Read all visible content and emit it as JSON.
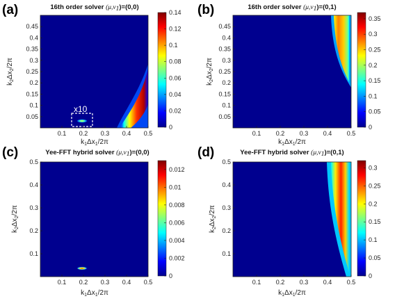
{
  "chart_data": [
    {
      "type": "heatmap",
      "panel_label": "(a)",
      "title": {
        "prefix": "16th order solver ",
        "params": "(μ,ν",
        "sub": "1",
        "suffix": ")=(0,0)"
      },
      "xlabel": {
        "pre": "k",
        "sub": "1",
        "post": "Δx",
        "sub2": "1",
        "end": "/2π"
      },
      "ylabel": {
        "pre": "k",
        "sub": "2",
        "post": "Δx",
        "sub2": "2",
        "end": "/2π"
      },
      "xlim": [
        0,
        0.5
      ],
      "ylim": [
        0,
        0.5
      ],
      "xticks": [
        "0.1",
        "0.2",
        "0.3",
        "0.4",
        "0.5"
      ],
      "yticks": [
        "0.05",
        "0.1",
        "0.15",
        "0.2",
        "0.25",
        "0.3",
        "0.35",
        "0.4",
        "0.45"
      ],
      "colorbar": {
        "range": [
          0,
          0.14
        ],
        "ticks": [
          "0",
          "0.02",
          "0.04",
          "0.06",
          "0.08",
          "0.1",
          "0.12",
          "0.14"
        ]
      },
      "annotation": "x10",
      "regions": [
        {
          "description": "crescent band near x=0.4–0.5, y=0.02–0.25",
          "peak": 0.14
        },
        {
          "description": "small spot near x≈0.22, y≈0.03",
          "peak": 0.06
        }
      ]
    },
    {
      "type": "heatmap",
      "panel_label": "(b)",
      "title": {
        "prefix": "16th order solver ",
        "params": "(μ,ν",
        "sub": "1",
        "suffix": ")=(0,1)"
      },
      "xlabel": {
        "pre": "k",
        "sub": "1",
        "post": "Δx",
        "sub2": "1",
        "end": "/2π"
      },
      "ylabel": {
        "pre": "k",
        "sub": "2",
        "post": "Δx",
        "sub2": "2",
        "end": "/2π"
      },
      "xlim": [
        0,
        0.5
      ],
      "ylim": [
        0,
        0.5
      ],
      "xticks": [
        "0.1",
        "0.2",
        "0.3",
        "0.4",
        "0.5"
      ],
      "yticks": [
        "0.05",
        "0.1",
        "0.15",
        "0.2",
        "0.25",
        "0.3",
        "0.35",
        "0.4",
        "0.45"
      ],
      "colorbar": {
        "range": [
          0,
          0.37
        ],
        "ticks": [
          "0",
          "0.05",
          "0.1",
          "0.15",
          "0.2",
          "0.25",
          "0.3",
          "0.35"
        ]
      },
      "regions": [
        {
          "description": "band near x=0.44–0.5, y=0.18–0.5",
          "peak": 0.37
        }
      ]
    },
    {
      "type": "heatmap",
      "panel_label": "(c)",
      "title": {
        "prefix": "Yee-FFT hybrid solver ",
        "params": "(μ,ν",
        "sub": "1",
        "suffix": ")=(0,0)"
      },
      "xlabel": {
        "pre": "k",
        "sub": "1",
        "post": "Δx",
        "sub2": "1",
        "end": "/2π"
      },
      "ylabel": {
        "pre": "k",
        "sub": "2",
        "post": "Δx",
        "sub2": "2",
        "end": "/2π"
      },
      "xlim": [
        0,
        0.5
      ],
      "ylim": [
        0,
        0.5
      ],
      "xticks": [
        "0.1",
        "0.2",
        "0.3",
        "0.4",
        "0.5"
      ],
      "yticks": [
        "0.1",
        "0.2",
        "0.3",
        "0.4",
        "0.5"
      ],
      "colorbar": {
        "range": [
          0,
          0.013
        ],
        "ticks": [
          "0",
          "0.002",
          "0.004",
          "0.006",
          "0.008",
          "0.01",
          "0.012"
        ]
      },
      "regions": [
        {
          "description": "small spot near x≈0.22, y≈0.03",
          "peak": 0.013
        }
      ]
    },
    {
      "type": "heatmap",
      "panel_label": "(d)",
      "title": {
        "prefix": "Yee-FFT hybrid solver ",
        "params": "(μ,ν",
        "sub": "1",
        "suffix": ")=(0,1)"
      },
      "xlabel": {
        "pre": "k",
        "sub": "1",
        "post": "Δx",
        "sub2": "1",
        "end": "/2π"
      },
      "ylabel": {
        "pre": "k",
        "sub": "2",
        "post": "Δx",
        "sub2": "2",
        "end": "/2π"
      },
      "xlim": [
        0,
        0.5
      ],
      "ylim": [
        0,
        0.5
      ],
      "xticks": [
        "0.1",
        "0.2",
        "0.3",
        "0.4",
        "0.5"
      ],
      "yticks": [
        "0.1",
        "0.2",
        "0.3",
        "0.4",
        "0.5"
      ],
      "colorbar": {
        "range": [
          0,
          0.32
        ],
        "ticks": [
          "0",
          "0.05",
          "0.1",
          "0.15",
          "0.2",
          "0.25",
          "0.3"
        ]
      },
      "regions": [
        {
          "description": "band near x=0.43–0.5, y=0.01–0.5",
          "peak": 0.32
        }
      ]
    }
  ],
  "colors": {
    "background_field": "#00008f",
    "colormap": "jet"
  }
}
